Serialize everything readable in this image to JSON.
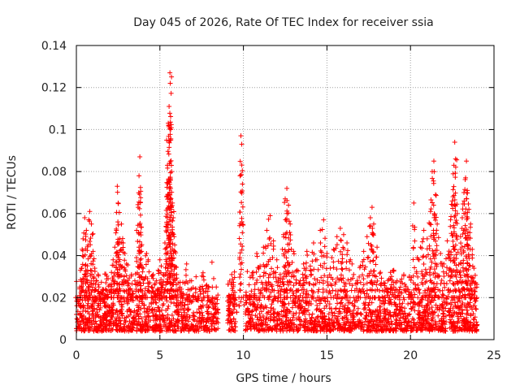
{
  "chart_data": {
    "type": "scatter",
    "title": "Day 045 of 2026, Rate Of TEC Index for receiver ssia",
    "xlabel": "GPS time / hours",
    "ylabel": "ROTI / TECUs",
    "xlim": [
      0,
      25
    ],
    "ylim": [
      0,
      0.14
    ],
    "xticks": [
      0,
      5,
      10,
      15,
      20,
      25
    ],
    "xtick_labels": [
      "0",
      "5",
      "10",
      "15",
      "20",
      "25"
    ],
    "yticks": [
      0,
      0.02,
      0.04,
      0.06,
      0.08,
      0.1,
      0.12,
      0.14
    ],
    "ytick_labels": [
      "0",
      "0.02",
      "0.04",
      "0.06",
      "0.08",
      "0.1",
      "0.12",
      "0.14"
    ],
    "grid": true,
    "marker": "+",
    "color": "#ff0000",
    "series": [
      {
        "name": "ROTI",
        "points": [
          [
            0.0,
            0.012
          ],
          [
            0.1,
            0.018
          ],
          [
            0.2,
            0.025
          ],
          [
            0.3,
            0.034
          ],
          [
            0.4,
            0.048
          ],
          [
            0.5,
            0.058
          ],
          [
            0.6,
            0.052
          ],
          [
            0.7,
            0.045
          ],
          [
            0.8,
            0.061
          ],
          [
            0.9,
            0.055
          ],
          [
            1.0,
            0.042
          ],
          [
            1.1,
            0.034
          ],
          [
            1.2,
            0.028
          ],
          [
            1.3,
            0.031
          ],
          [
            1.4,
            0.022
          ],
          [
            1.5,
            0.019
          ],
          [
            1.6,
            0.024
          ],
          [
            1.7,
            0.018
          ],
          [
            1.8,
            0.021
          ],
          [
            1.9,
            0.029
          ],
          [
            2.0,
            0.026
          ],
          [
            2.1,
            0.032
          ],
          [
            2.2,
            0.038
          ],
          [
            2.3,
            0.044
          ],
          [
            2.4,
            0.052
          ],
          [
            2.45,
            0.073
          ],
          [
            2.5,
            0.065
          ],
          [
            2.6,
            0.048
          ],
          [
            2.7,
            0.055
          ],
          [
            2.8,
            0.046
          ],
          [
            2.9,
            0.041
          ],
          [
            3.0,
            0.036
          ],
          [
            3.1,
            0.027
          ],
          [
            3.2,
            0.024
          ],
          [
            3.3,
            0.031
          ],
          [
            3.4,
            0.022
          ],
          [
            3.5,
            0.028
          ],
          [
            3.6,
            0.039
          ],
          [
            3.7,
            0.063
          ],
          [
            3.75,
            0.078
          ],
          [
            3.8,
            0.087
          ],
          [
            3.85,
            0.051
          ],
          [
            3.9,
            0.042
          ],
          [
            4.0,
            0.034
          ],
          [
            4.1,
            0.029
          ],
          [
            4.2,
            0.041
          ],
          [
            4.3,
            0.038
          ],
          [
            4.4,
            0.027
          ],
          [
            4.5,
            0.025
          ],
          [
            4.6,
            0.031
          ],
          [
            4.7,
            0.022
          ],
          [
            4.8,
            0.028
          ],
          [
            4.9,
            0.033
          ],
          [
            5.0,
            0.038
          ],
          [
            5.1,
            0.026
          ],
          [
            5.2,
            0.031
          ],
          [
            5.3,
            0.046
          ],
          [
            5.4,
            0.068
          ],
          [
            5.45,
            0.083
          ],
          [
            5.5,
            0.103
          ],
          [
            5.55,
            0.111
          ],
          [
            5.6,
            0.127
          ],
          [
            5.62,
            0.122
          ],
          [
            5.65,
            0.095
          ],
          [
            5.7,
            0.08
          ],
          [
            5.75,
            0.065
          ],
          [
            5.8,
            0.058
          ],
          [
            5.85,
            0.049
          ],
          [
            5.9,
            0.042
          ],
          [
            6.0,
            0.031
          ],
          [
            6.2,
            0.025
          ],
          [
            6.4,
            0.022
          ],
          [
            6.6,
            0.036
          ],
          [
            6.8,
            0.028
          ],
          [
            7.0,
            0.021
          ],
          [
            7.2,
            0.019
          ],
          [
            7.4,
            0.024
          ],
          [
            7.6,
            0.03
          ],
          [
            7.8,
            0.026
          ],
          [
            8.0,
            0.018
          ],
          [
            8.2,
            0.015
          ],
          [
            8.4,
            0.013
          ],
          [
            9.1,
            0.014
          ],
          [
            9.2,
            0.02
          ],
          [
            9.3,
            0.031
          ],
          [
            9.4,
            0.026
          ],
          [
            9.5,
            0.019
          ],
          [
            9.6,
            0.013
          ],
          [
            9.75,
            0.016
          ],
          [
            9.85,
            0.097
          ],
          [
            9.9,
            0.093
          ],
          [
            10.2,
            0.014
          ],
          [
            10.4,
            0.021
          ],
          [
            10.6,
            0.032
          ],
          [
            10.8,
            0.041
          ],
          [
            11.0,
            0.035
          ],
          [
            11.2,
            0.044
          ],
          [
            11.4,
            0.052
          ],
          [
            11.6,
            0.059
          ],
          [
            11.8,
            0.047
          ],
          [
            12.0,
            0.038
          ],
          [
            12.2,
            0.031
          ],
          [
            12.4,
            0.05
          ],
          [
            12.5,
            0.067
          ],
          [
            12.6,
            0.072
          ],
          [
            12.7,
            0.064
          ],
          [
            12.8,
            0.055
          ],
          [
            13.0,
            0.042
          ],
          [
            13.2,
            0.033
          ],
          [
            13.4,
            0.028
          ],
          [
            13.6,
            0.036
          ],
          [
            13.8,
            0.042
          ],
          [
            14.0,
            0.035
          ],
          [
            14.2,
            0.046
          ],
          [
            14.4,
            0.038
          ],
          [
            14.6,
            0.052
          ],
          [
            14.8,
            0.057
          ],
          [
            15.0,
            0.041
          ],
          [
            15.2,
            0.034
          ],
          [
            15.4,
            0.043
          ],
          [
            15.6,
            0.049
          ],
          [
            15.8,
            0.053
          ],
          [
            16.0,
            0.05
          ],
          [
            16.2,
            0.046
          ],
          [
            16.4,
            0.038
          ],
          [
            16.6,
            0.031
          ],
          [
            16.8,
            0.027
          ],
          [
            17.0,
            0.035
          ],
          [
            17.2,
            0.042
          ],
          [
            17.4,
            0.049
          ],
          [
            17.6,
            0.058
          ],
          [
            17.7,
            0.063
          ],
          [
            17.8,
            0.055
          ],
          [
            18.0,
            0.044
          ],
          [
            18.2,
            0.032
          ],
          [
            18.4,
            0.027
          ],
          [
            18.6,
            0.023
          ],
          [
            18.8,
            0.029
          ],
          [
            19.0,
            0.033
          ],
          [
            19.2,
            0.028
          ],
          [
            19.4,
            0.025
          ],
          [
            19.6,
            0.031
          ],
          [
            19.8,
            0.024
          ],
          [
            20.0,
            0.021
          ],
          [
            20.2,
            0.065
          ],
          [
            20.4,
            0.039
          ],
          [
            20.6,
            0.044
          ],
          [
            20.8,
            0.052
          ],
          [
            21.0,
            0.048
          ],
          [
            21.2,
            0.061
          ],
          [
            21.3,
            0.08
          ],
          [
            21.4,
            0.085
          ],
          [
            21.5,
            0.069
          ],
          [
            21.6,
            0.055
          ],
          [
            21.8,
            0.041
          ],
          [
            22.0,
            0.036
          ],
          [
            22.2,
            0.047
          ],
          [
            22.4,
            0.057
          ],
          [
            22.5,
            0.066
          ],
          [
            22.6,
            0.083
          ],
          [
            22.65,
            0.094
          ],
          [
            22.7,
            0.086
          ],
          [
            22.8,
            0.06
          ],
          [
            23.0,
            0.049
          ],
          [
            23.1,
            0.058
          ],
          [
            23.2,
            0.07
          ],
          [
            23.3,
            0.077
          ],
          [
            23.35,
            0.085
          ],
          [
            23.4,
            0.071
          ],
          [
            23.5,
            0.062
          ],
          [
            23.6,
            0.055
          ],
          [
            23.7,
            0.043
          ],
          [
            23.8,
            0.034
          ],
          [
            23.9,
            0.027
          ]
        ]
      }
    ]
  }
}
